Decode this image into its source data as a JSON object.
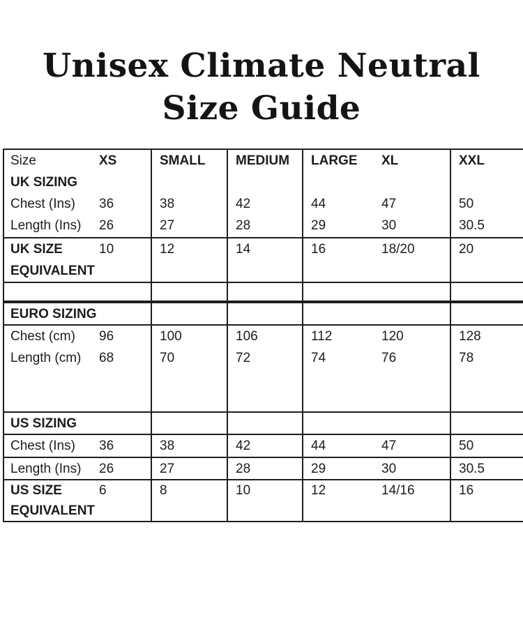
{
  "title": {
    "line1": "Unisex Climate Neutral",
    "line2": "Size Guide"
  },
  "table": {
    "header": {
      "size": "Size",
      "xs": "XS",
      "small": "SMALL",
      "medium": "MEDIUM",
      "large": "LARGE",
      "xl": "XL",
      "xxl": "XXL"
    },
    "uk": {
      "section": "UK SIZING",
      "chest": {
        "label": "Chest (Ins)",
        "values": [
          "36",
          "38",
          "42",
          "44",
          "47",
          "50"
        ]
      },
      "length": {
        "label": "Length (Ins)",
        "values": [
          "26",
          "27",
          "28",
          "29",
          "30",
          "30.5"
        ]
      },
      "equiv": {
        "line1": "UK SIZE",
        "line2": "EQUIVALENT",
        "values": [
          "10",
          "12",
          "14",
          "16",
          "18/20",
          "20"
        ]
      }
    },
    "euro": {
      "section": "EURO SIZING",
      "chest": {
        "label": "Chest (cm)",
        "values": [
          "96",
          "100",
          "106",
          "112",
          "120",
          "128"
        ]
      },
      "length": {
        "label": "Length (cm)",
        "values": [
          "68",
          "70",
          "72",
          "74",
          "76",
          "78"
        ]
      }
    },
    "us": {
      "section": "US SIZING",
      "chest": {
        "label": "Chest (Ins)",
        "values": [
          "36",
          "38",
          "42",
          "44",
          "47",
          "50"
        ]
      },
      "length": {
        "label": "Length (Ins)",
        "values": [
          "26",
          "27",
          "28",
          "29",
          "30",
          "30.5"
        ]
      },
      "equiv": {
        "line1": "US SIZE",
        "line2": "EQUIVALENT",
        "values": [
          "6",
          "8",
          "10",
          "12",
          "14/16",
          "16"
        ]
      }
    }
  }
}
